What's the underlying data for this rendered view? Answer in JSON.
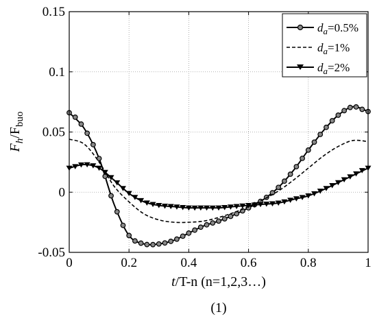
{
  "chart_data": {
    "type": "line",
    "xlabel_italic": "t",
    "xlabel_rest": "/T-n (n=1,2,3…)",
    "ylabel_F": "F",
    "ylabel_h": "h",
    "ylabel_slash": "/F",
    "ylabel_buo": "buo",
    "caption": "(1)",
    "xlim": [
      0,
      1
    ],
    "ylim": [
      -0.05,
      0.15
    ],
    "xticks": [
      0,
      0.2,
      0.4,
      0.6,
      0.8,
      1
    ],
    "xtick_labels": [
      "0",
      "0.2",
      "0.4",
      "0.6",
      "0.8",
      "1"
    ],
    "yticks": [
      -0.05,
      0,
      0.05,
      0.1,
      0.15
    ],
    "ytick_labels": [
      "-0.05",
      "0",
      "0.05",
      "0.1",
      "0.15"
    ],
    "grid": true,
    "legend_position": "top-right",
    "x": [
      0,
      0.05,
      0.1,
      0.15,
      0.2,
      0.25,
      0.3,
      0.35,
      0.4,
      0.45,
      0.5,
      0.55,
      0.6,
      0.65,
      0.7,
      0.75,
      0.8,
      0.85,
      0.9,
      0.95,
      1
    ],
    "series": [
      {
        "label_d": "d",
        "label_a": "a",
        "label_value": "=0.5%",
        "style": "solid-circle",
        "color": "#000000",
        "values": [
          0.066,
          0.053,
          0.028,
          -0.01,
          -0.036,
          -0.043,
          -0.043,
          -0.04,
          -0.034,
          -0.028,
          -0.024,
          -0.019,
          -0.013,
          -0.006,
          0.004,
          0.018,
          0.035,
          0.051,
          0.064,
          0.071,
          0.067
        ]
      },
      {
        "label_d": "d",
        "label_a": "a",
        "label_value": "=1%",
        "style": "dashed",
        "color": "#000000",
        "values": [
          0.044,
          0.04,
          0.025,
          0.005,
          -0.008,
          -0.018,
          -0.023,
          -0.025,
          -0.025,
          -0.024,
          -0.021,
          -0.017,
          -0.012,
          -0.006,
          0.001,
          0.01,
          0.02,
          0.03,
          0.038,
          0.043,
          0.042
        ]
      },
      {
        "label_d": "d",
        "label_a": "a",
        "label_value": "=2%",
        "style": "solid-triangle",
        "color": "#000000",
        "values": [
          0.02,
          0.023,
          0.02,
          0.01,
          -0.001,
          -0.008,
          -0.011,
          -0.012,
          -0.013,
          -0.013,
          -0.013,
          -0.012,
          -0.011,
          -0.01,
          -0.009,
          -0.006,
          -0.003,
          0.002,
          0.008,
          0.014,
          0.02
        ]
      }
    ]
  }
}
